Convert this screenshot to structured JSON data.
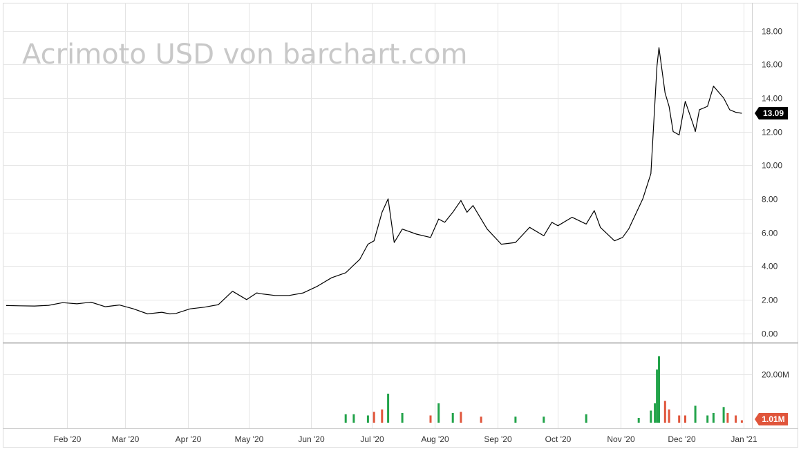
{
  "chart_data": [
    {
      "type": "line",
      "title": "Acrimoto USD von barchart.com",
      "xlabel": "",
      "ylabel": "",
      "x_tick_labels": [
        "Feb '20",
        "Mar '20",
        "Apr '20",
        "May '20",
        "Jun '20",
        "Jul '20",
        "Aug '20",
        "Sep '20",
        "Oct '20",
        "Nov '20",
        "Dec '20",
        "Jan '21"
      ],
      "y_tick_labels": [
        "18.00",
        "16.00",
        "14.00",
        "12.00",
        "10.00",
        "8.00",
        "6.00",
        "4.00",
        "2.00",
        "0.00"
      ],
      "ylim": [
        0,
        18
      ],
      "grid": true,
      "last_value_label": "13.09",
      "last_value": 13.09,
      "line_color": "#000000",
      "series": [
        {
          "x": [
            "2020-01-02",
            "2020-01-09",
            "2020-01-16",
            "2020-01-23",
            "2020-01-30",
            "2020-02-06",
            "2020-02-13",
            "2020-02-20",
            "2020-02-27",
            "2020-03-05",
            "2020-03-12",
            "2020-03-19",
            "2020-03-23",
            "2020-03-26",
            "2020-04-02",
            "2020-04-09",
            "2020-04-16",
            "2020-04-23",
            "2020-04-30",
            "2020-05-05",
            "2020-05-07",
            "2020-05-14",
            "2020-05-21",
            "2020-05-28",
            "2020-06-04",
            "2020-06-11",
            "2020-06-18",
            "2020-06-25",
            "2020-06-29",
            "2020-07-02",
            "2020-07-06",
            "2020-07-09",
            "2020-07-12",
            "2020-07-16",
            "2020-07-23",
            "2020-07-30",
            "2020-08-03",
            "2020-08-06",
            "2020-08-10",
            "2020-08-14",
            "2020-08-17",
            "2020-08-20",
            "2020-08-27",
            "2020-09-03",
            "2020-09-10",
            "2020-09-17",
            "2020-09-24",
            "2020-09-28",
            "2020-10-01",
            "2020-10-08",
            "2020-10-15",
            "2020-10-19",
            "2020-10-22",
            "2020-10-29",
            "2020-11-02",
            "2020-11-05",
            "2020-11-12",
            "2020-11-16",
            "2020-11-19",
            "2020-11-20",
            "2020-11-23",
            "2020-11-25",
            "2020-11-27",
            "2020-11-30",
            "2020-12-03",
            "2020-12-07",
            "2020-12-08",
            "2020-12-10",
            "2020-12-14",
            "2020-12-17",
            "2020-12-22",
            "2020-12-25",
            "2020-12-28",
            "2020-12-31"
          ],
          "values": [
            1.65,
            1.63,
            1.62,
            1.66,
            1.82,
            1.75,
            1.85,
            1.58,
            1.68,
            1.45,
            1.15,
            1.25,
            1.15,
            1.18,
            1.45,
            1.55,
            1.7,
            2.5,
            2.0,
            2.4,
            2.35,
            2.25,
            2.25,
            2.4,
            2.8,
            3.3,
            3.6,
            4.4,
            5.3,
            5.5,
            7.2,
            8.0,
            5.4,
            6.2,
            5.9,
            5.7,
            6.8,
            6.6,
            7.2,
            7.9,
            7.2,
            7.6,
            6.2,
            5.3,
            5.4,
            6.3,
            5.8,
            6.6,
            6.4,
            6.9,
            6.5,
            7.3,
            6.3,
            5.5,
            5.7,
            6.2,
            8.0,
            9.5,
            15.9,
            17.0,
            14.3,
            13.5,
            12.0,
            11.8,
            13.8,
            12.4,
            12.0,
            13.3,
            13.5,
            14.7,
            14.0,
            13.3,
            13.15,
            13.09
          ]
        }
      ]
    },
    {
      "type": "bar",
      "title": "",
      "xlabel": "",
      "ylabel": "",
      "y_tick_labels": [
        "20.00M"
      ],
      "ylim": [
        0,
        30
      ],
      "last_value_label": "1.01M",
      "last_value": 1.01,
      "up_color": "#22a34a",
      "down_color": "#e0553b",
      "series": [
        {
          "x": [
            "2020-06-18",
            "2020-06-22",
            "2020-06-29",
            "2020-07-02",
            "2020-07-06",
            "2020-07-09",
            "2020-07-16",
            "2020-07-30",
            "2020-08-03",
            "2020-08-10",
            "2020-08-14",
            "2020-08-24",
            "2020-09-10",
            "2020-09-24",
            "2020-10-15",
            "2020-11-10",
            "2020-11-16",
            "2020-11-18",
            "2020-11-19",
            "2020-11-20",
            "2020-11-23",
            "2020-11-25",
            "2020-11-30",
            "2020-12-03",
            "2020-12-08",
            "2020-12-14",
            "2020-12-17",
            "2020-12-22",
            "2020-12-24",
            "2020-12-28",
            "2020-12-31"
          ],
          "values": [
            3.5,
            3.5,
            3.0,
            4.5,
            5.5,
            12.0,
            4.0,
            3.0,
            8.0,
            4.0,
            4.5,
            2.5,
            2.5,
            2.5,
            3.5,
            2.0,
            5.0,
            8.0,
            22.0,
            27.5,
            9.0,
            5.5,
            3.0,
            3.0,
            7.0,
            3.0,
            4.0,
            6.5,
            4.0,
            3.0,
            1.01
          ],
          "colors": [
            "up",
            "up",
            "up",
            "down",
            "down",
            "up",
            "up",
            "down",
            "up",
            "up",
            "down",
            "down",
            "up",
            "up",
            "up",
            "up",
            "up",
            "up",
            "up",
            "up",
            "down",
            "down",
            "down",
            "down",
            "up",
            "up",
            "up",
            "up",
            "down",
            "down",
            "down"
          ]
        }
      ]
    }
  ],
  "watermark": "Acrimoto USD von barchart.com"
}
